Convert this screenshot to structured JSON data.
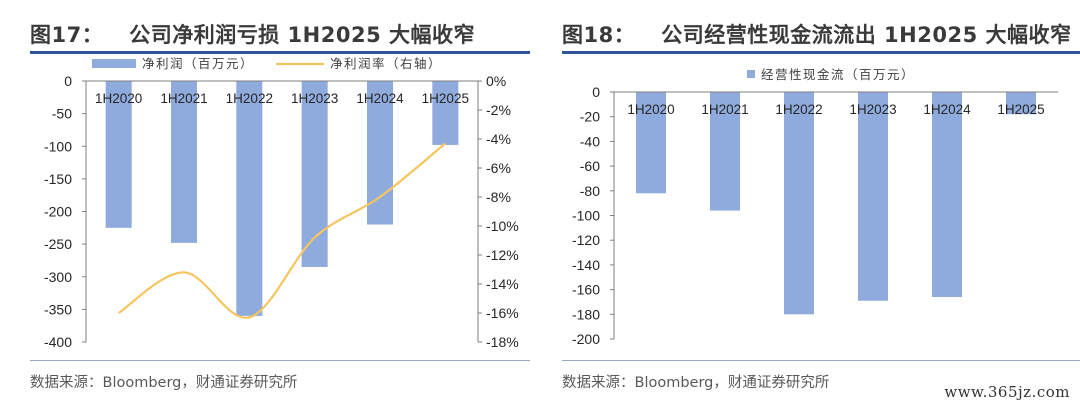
{
  "left": {
    "figure_number": "图17：",
    "title": "公司净利润亏损 1H2025 大幅收窄",
    "source": "数据来源：Bloomberg，财通证券研究所",
    "chart_data": {
      "type": "bar",
      "categories": [
        "1H2020",
        "1H2021",
        "1H2022",
        "1H2023",
        "1H2024",
        "1H2025"
      ],
      "series": [
        {
          "name": "净利润（百万元）",
          "kind": "bar",
          "axis": "left",
          "color": "#8faadc",
          "values": [
            -225,
            -248,
            -360,
            -285,
            -220,
            -98
          ]
        },
        {
          "name": "净利润率（右轴）",
          "kind": "line",
          "axis": "right",
          "color": "#f5c561",
          "values": [
            -16.0,
            -13.2,
            -16.3,
            -10.8,
            -8.0,
            -4.3
          ]
        }
      ],
      "y_left": {
        "min": -400,
        "max": 0,
        "ticks": [
          0,
          -50,
          -100,
          -150,
          -200,
          -250,
          -300,
          -350,
          -400
        ],
        "tick_labels": [
          "0",
          "-50",
          "-100",
          "-150",
          "-200",
          "-250",
          "-300",
          "-350",
          "-400"
        ]
      },
      "y_right": {
        "min": -18,
        "max": 0,
        "ticks": [
          0,
          -2,
          -4,
          -6,
          -8,
          -10,
          -12,
          -14,
          -16,
          -18
        ],
        "tick_labels": [
          "0%",
          "-2%",
          "-4%",
          "-6%",
          "-8%",
          "-10%",
          "-12%",
          "-14%",
          "-16%",
          "-18%"
        ]
      },
      "legend_position": "top",
      "grid": false
    }
  },
  "right": {
    "figure_number": "图18：",
    "title": "公司经营性现金流流出 1H2025 大幅收窄",
    "source": "数据来源：Bloomberg，财通证券研究所",
    "chart_data": {
      "type": "bar",
      "categories": [
        "1H2020",
        "1H2021",
        "1H2022",
        "1H2023",
        "1H2024",
        "1H2025"
      ],
      "series": [
        {
          "name": "经营性现金流（百万元）",
          "kind": "bar",
          "axis": "left",
          "color": "#8faadc",
          "values": [
            -82,
            -96,
            -180,
            -169,
            -166,
            -18
          ]
        }
      ],
      "y_left": {
        "min": -200,
        "max": 0,
        "ticks": [
          0,
          -20,
          -40,
          -60,
          -80,
          -100,
          -120,
          -140,
          -160,
          -180,
          -200
        ],
        "tick_labels": [
          "0",
          "-20",
          "-40",
          "-60",
          "-80",
          "-100",
          "-120",
          "-140",
          "-160",
          "-180",
          "-200"
        ]
      },
      "legend_position": "top",
      "grid": false
    }
  },
  "watermark": "www.365jz.com"
}
